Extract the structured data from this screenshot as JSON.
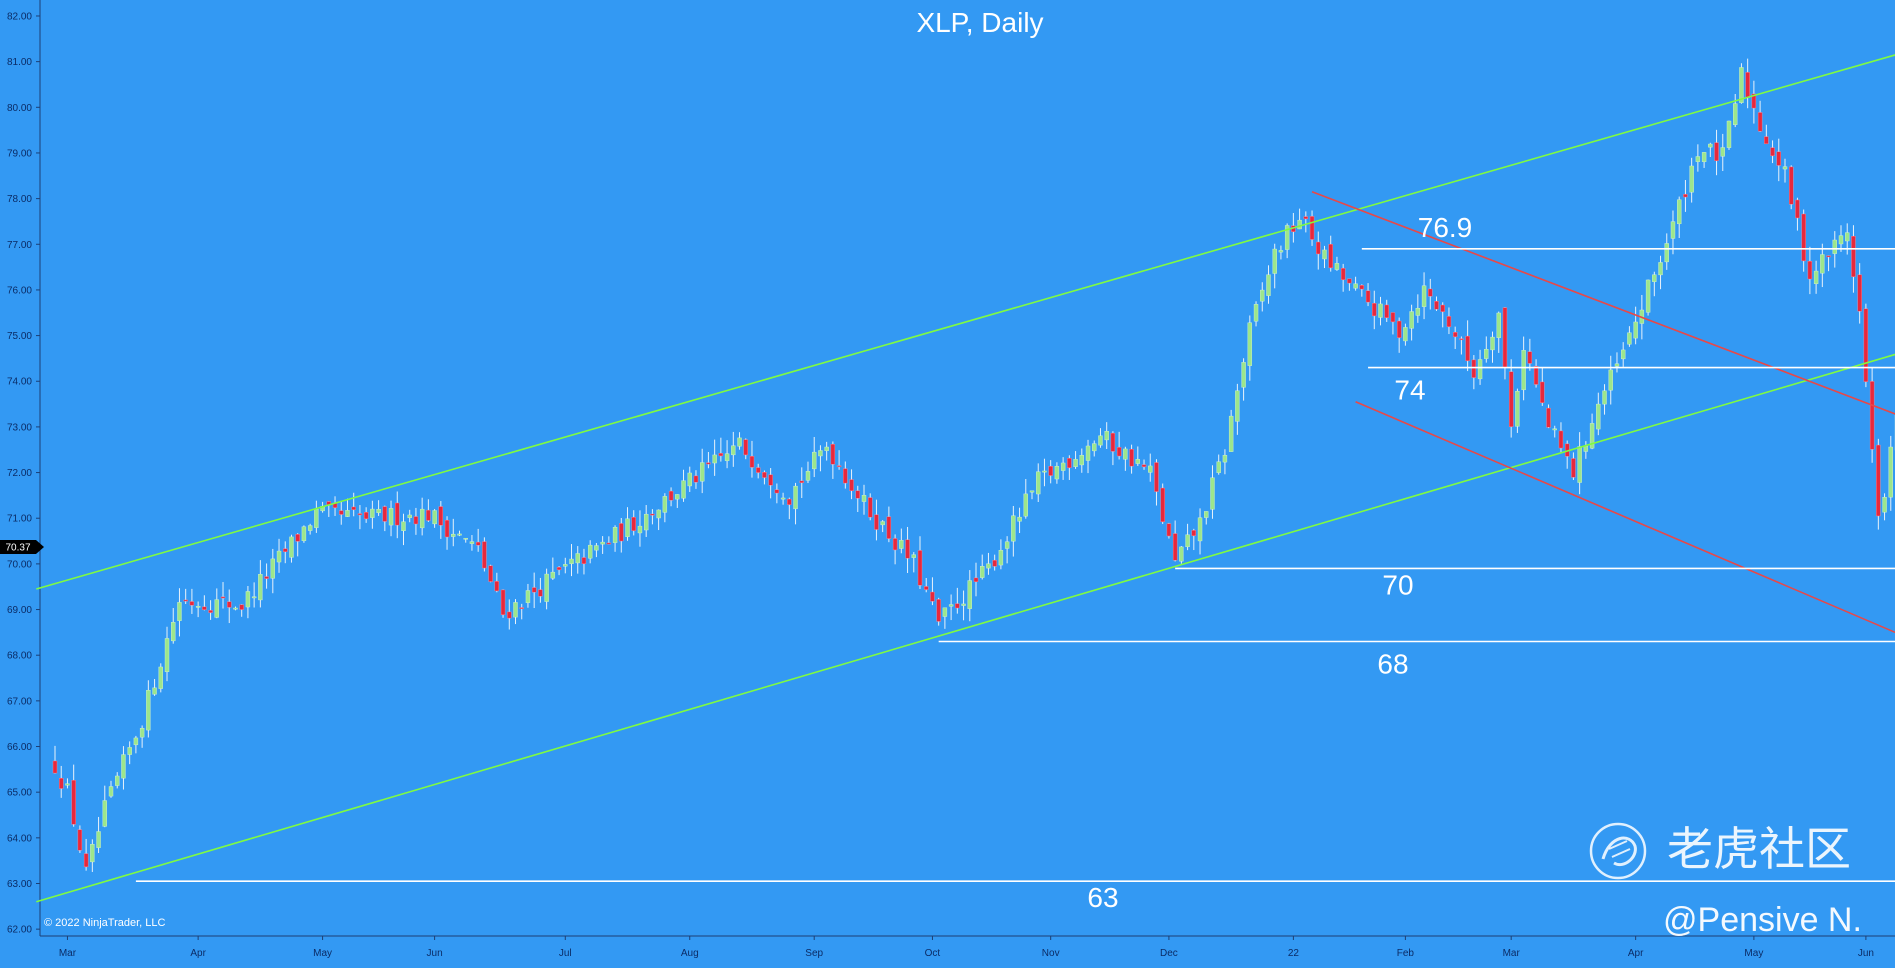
{
  "chart_data": {
    "type": "candlestick",
    "title": "XLP, Daily",
    "copyright": "© 2022 NinjaTrader, LLC",
    "watermark": {
      "brand": "老虎社区",
      "author": "@Pensive N."
    },
    "current_price_label": "70.37",
    "current_price": 70.37,
    "ylim": [
      61.85,
      82.35
    ],
    "y_ticks": [
      "62.00",
      "63.00",
      "64.00",
      "65.00",
      "66.00",
      "67.00",
      "68.00",
      "69.00",
      "70.00",
      "71.00",
      "72.00",
      "73.00",
      "74.00",
      "75.00",
      "76.00",
      "77.00",
      "78.00",
      "79.00",
      "80.00",
      "81.00",
      "82.00"
    ],
    "x_ticks": [
      "Mar",
      "Apr",
      "May",
      "Jun",
      "Jul",
      "Aug",
      "Sep",
      "Oct",
      "Nov",
      "Dec",
      "22",
      "Feb",
      "Mar",
      "Apr",
      "May",
      "Jun"
    ],
    "x_tick_bar_index": [
      2,
      23,
      43,
      61,
      82,
      102,
      122,
      141,
      160,
      179,
      199,
      217,
      234,
      254,
      273,
      291
    ],
    "bar_count": 304,
    "price_path": [
      [
        0,
        65.6
      ],
      [
        2,
        65.0
      ],
      [
        5,
        63.2
      ],
      [
        8,
        64.6
      ],
      [
        14,
        66.6
      ],
      [
        20,
        69.2
      ],
      [
        30,
        69.1
      ],
      [
        42,
        71.1
      ],
      [
        50,
        71.0
      ],
      [
        60,
        71.1
      ],
      [
        68,
        70.3
      ],
      [
        72,
        68.9
      ],
      [
        80,
        69.7
      ],
      [
        90,
        70.6
      ],
      [
        102,
        71.8
      ],
      [
        110,
        72.6
      ],
      [
        118,
        71.5
      ],
      [
        124,
        72.6
      ],
      [
        130,
        71.3
      ],
      [
        138,
        70.0
      ],
      [
        142,
        68.7
      ],
      [
        150,
        69.9
      ],
      [
        158,
        71.8
      ],
      [
        168,
        72.8
      ],
      [
        176,
        72.0
      ],
      [
        180,
        70.0
      ],
      [
        184,
        70.9
      ],
      [
        188,
        72.5
      ],
      [
        192,
        75.1
      ],
      [
        196,
        76.8
      ],
      [
        200,
        77.6
      ],
      [
        204,
        76.7
      ],
      [
        208,
        76.1
      ],
      [
        212,
        75.6
      ],
      [
        216,
        75.1
      ],
      [
        220,
        76.0
      ],
      [
        224,
        75.3
      ],
      [
        228,
        74.2
      ],
      [
        232,
        75.5
      ],
      [
        234,
        73.0
      ],
      [
        236,
        74.8
      ],
      [
        240,
        73.0
      ],
      [
        244,
        72.0
      ],
      [
        248,
        73.5
      ],
      [
        252,
        74.6
      ],
      [
        256,
        76.0
      ],
      [
        260,
        77.4
      ],
      [
        264,
        79.1
      ],
      [
        268,
        78.9
      ],
      [
        271,
        80.7
      ],
      [
        274,
        79.6
      ],
      [
        278,
        78.5
      ],
      [
        282,
        76.3
      ],
      [
        288,
        77.3
      ],
      [
        290,
        75.5
      ],
      [
        293,
        70.9
      ],
      [
        295,
        72.4
      ],
      [
        298,
        74.6
      ],
      [
        301,
        73.2
      ],
      [
        303,
        70.3
      ]
    ],
    "lines": [
      {
        "name": "channel-upper",
        "color": "#7ffb42",
        "points": [
          [
            -3,
            69.45
          ],
          [
            306,
            81.55
          ]
        ]
      },
      {
        "name": "channel-lower",
        "color": "#7ffb42",
        "points": [
          [
            -3,
            62.6
          ],
          [
            306,
            75.0
          ]
        ]
      },
      {
        "name": "down-channel-upper",
        "color": "#e84848",
        "points": [
          [
            202,
            78.15
          ],
          [
            306,
            72.75
          ]
        ]
      },
      {
        "name": "down-channel-lower",
        "color": "#e84848",
        "points": [
          [
            209,
            73.55
          ],
          [
            306,
            67.9
          ]
        ]
      }
    ],
    "levels": [
      {
        "label": "76.9",
        "value": 76.9,
        "x_start": 210
      },
      {
        "label": "74",
        "value": 74.3,
        "x_start": 211
      },
      {
        "label": "70",
        "value": 69.9,
        "x_start": 180
      },
      {
        "label": "68",
        "value": 68.3,
        "x_start": 142
      },
      {
        "label": "63",
        "value": 63.05,
        "x_start": 13
      }
    ],
    "colors": {
      "background": "#3399f3",
      "up": "#9de68c",
      "down": "#e8283c",
      "level": "#ffffff",
      "text": "#ffffff",
      "axis_text": "#0b2c66"
    }
  }
}
